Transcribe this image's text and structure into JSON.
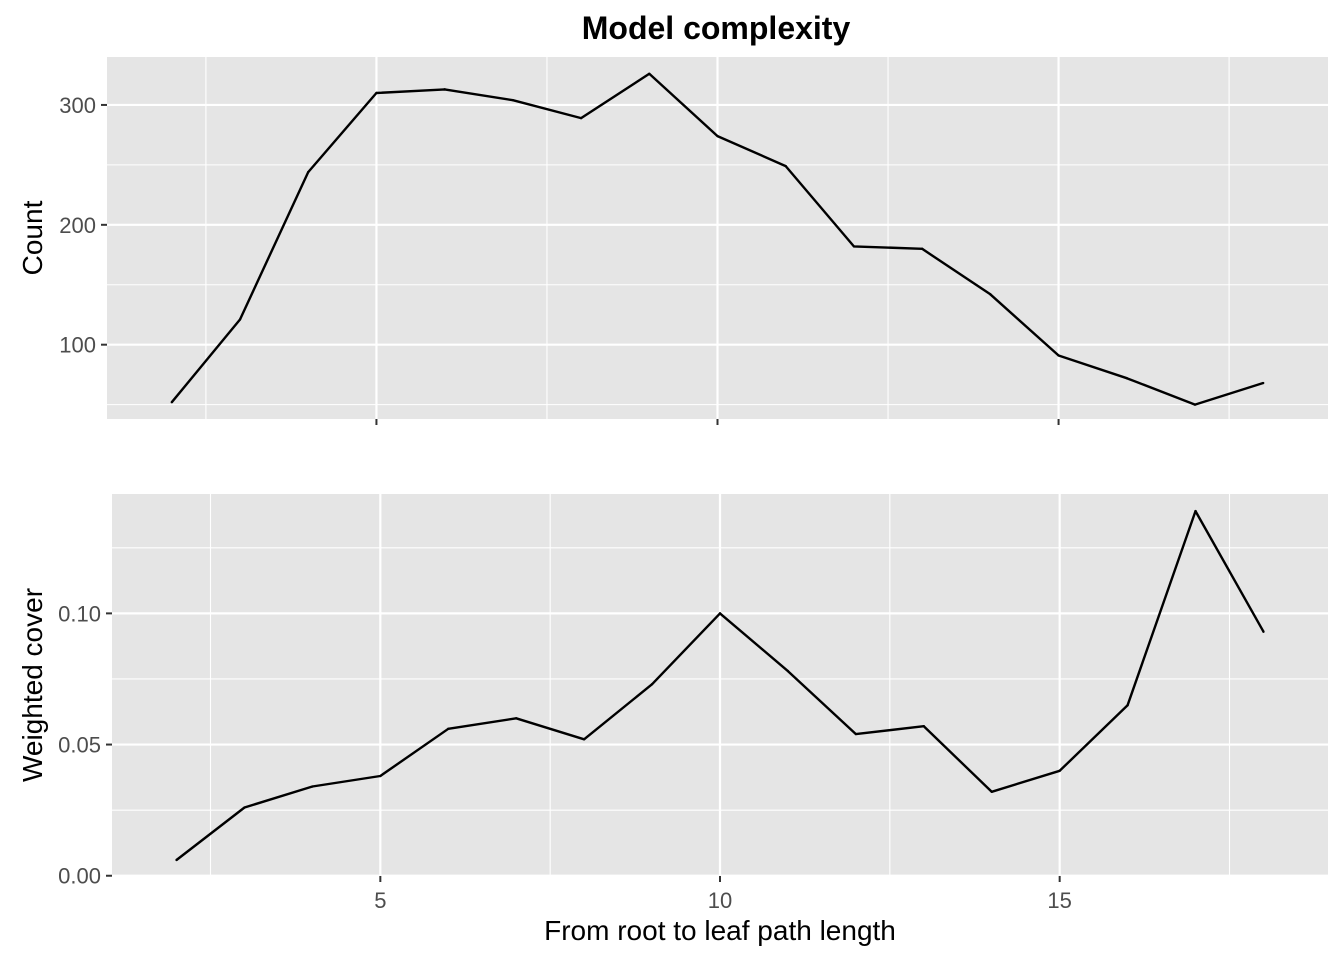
{
  "title": "Model complexity",
  "xlabel": "From root to leaf path length",
  "chart_data": [
    {
      "type": "line",
      "title": "Model complexity",
      "xlabel": "From root to leaf path length",
      "ylabel": "Count",
      "x": [
        2,
        3,
        4,
        5,
        6,
        7,
        8,
        9,
        10,
        11,
        12,
        13,
        14,
        15,
        16,
        17,
        18
      ],
      "values": [
        52,
        121,
        244,
        310,
        313,
        304,
        289,
        326,
        274,
        249,
        182,
        180,
        142,
        91,
        72,
        50,
        68
      ],
      "xlim": [
        1.05,
        18.95
      ],
      "ylim": [
        38,
        340
      ],
      "xticks": [
        5,
        10,
        15
      ],
      "yticks": [
        100,
        200,
        300
      ],
      "xtick_labels": [
        "5",
        "10",
        "15"
      ],
      "ytick_labels": [
        "100",
        "200",
        "300"
      ],
      "grid": true,
      "show_x_labels": false
    },
    {
      "type": "line",
      "xlabel": "From root to leaf path length",
      "ylabel": "Weighted cover",
      "x": [
        2,
        3,
        4,
        5,
        6,
        7,
        8,
        9,
        10,
        11,
        12,
        13,
        14,
        15,
        16,
        17,
        18
      ],
      "values": [
        0.006,
        0.026,
        0.034,
        0.038,
        0.056,
        0.06,
        0.052,
        0.073,
        0.1,
        0.078,
        0.054,
        0.057,
        0.032,
        0.04,
        0.065,
        0.139,
        0.093
      ],
      "xlim": [
        1.05,
        18.95
      ],
      "ylim": [
        -0.0001,
        0.1455
      ],
      "xticks": [
        5,
        10,
        15
      ],
      "yticks": [
        0.0,
        0.05,
        0.1
      ],
      "xtick_labels": [
        "5",
        "10",
        "15"
      ],
      "ytick_labels": [
        "0.00",
        "0.05",
        "0.10"
      ],
      "grid": true,
      "show_x_labels": true
    }
  ]
}
